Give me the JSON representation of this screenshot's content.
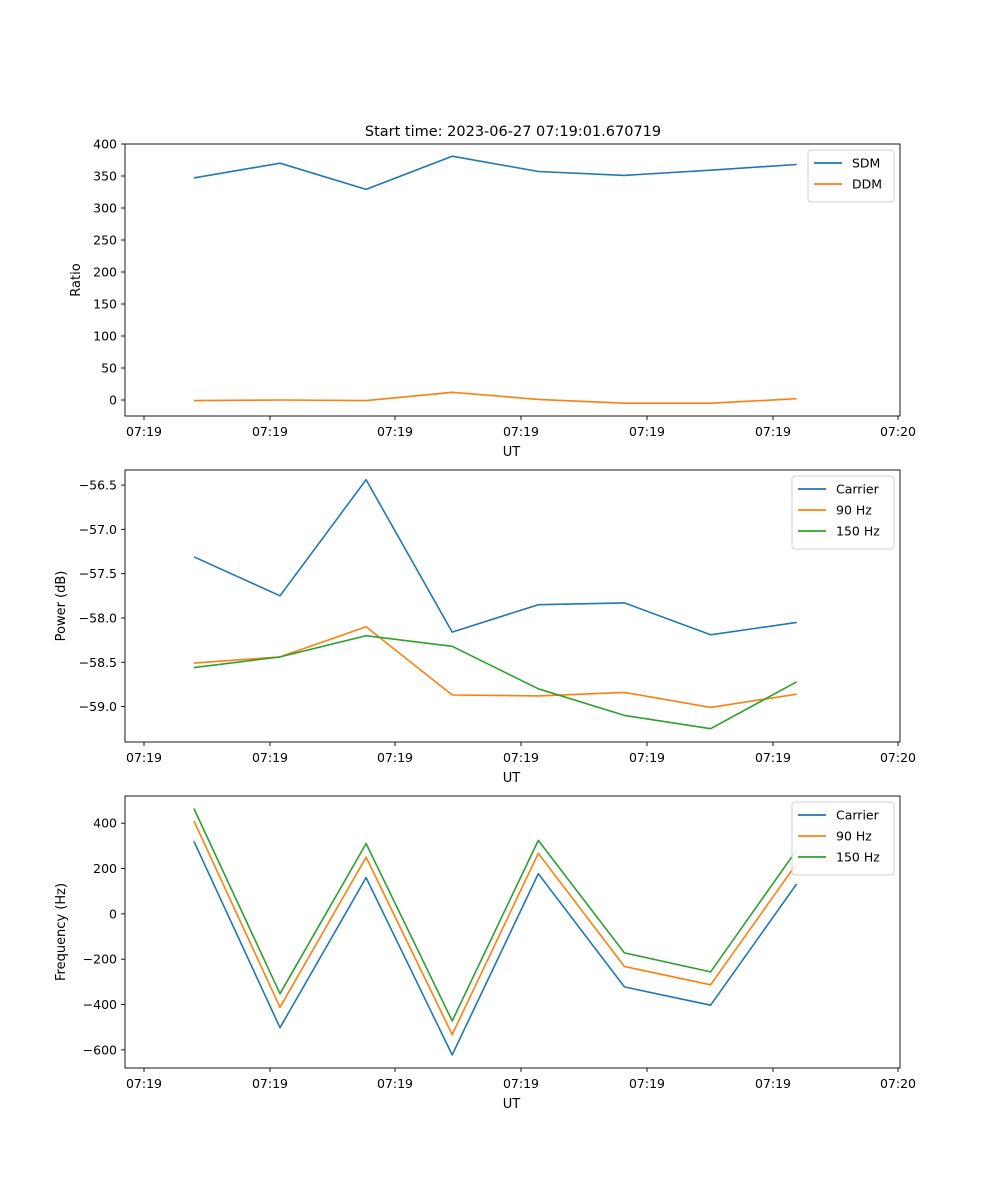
{
  "figure": {
    "title": "Start time: 2023-06-27 07:19:01.670719"
  },
  "colors": {
    "blue": "#1f77b4",
    "orange": "#ff7f0e",
    "green": "#2ca02c"
  },
  "chart_data": [
    {
      "type": "line",
      "title": "Start time: 2023-06-27 07:19:01.670719",
      "xlabel": "UT",
      "ylabel": "Ratio",
      "x_tick_labels": [
        "07:19",
        "07:19",
        "07:19",
        "07:19",
        "07:19",
        "07:19",
        "07:20"
      ],
      "x": [
        1,
        2,
        3,
        4,
        5,
        6,
        7,
        8
      ],
      "xlim": [
        0.2,
        9.2
      ],
      "ylim": [
        -25,
        400
      ],
      "y_ticks": [
        0,
        50,
        100,
        150,
        200,
        250,
        300,
        350,
        400
      ],
      "legend_position": "top-right",
      "grid": false,
      "series": [
        {
          "name": "SDM",
          "color": "#1f77b4",
          "values": [
            347,
            370,
            329,
            381,
            357,
            351,
            359,
            368
          ]
        },
        {
          "name": "DDM",
          "color": "#ff7f0e",
          "values": [
            -1,
            0,
            -1,
            12,
            1,
            -5,
            -5,
            2
          ]
        }
      ]
    },
    {
      "type": "line",
      "title": "",
      "xlabel": "UT",
      "ylabel": "Power (dB)",
      "x_tick_labels": [
        "07:19",
        "07:19",
        "07:19",
        "07:19",
        "07:19",
        "07:19",
        "07:20"
      ],
      "x": [
        1,
        2,
        3,
        4,
        5,
        6,
        7,
        8
      ],
      "xlim": [
        0.2,
        9.2
      ],
      "ylim": [
        -59.4,
        -56.33
      ],
      "y_ticks": [
        -59.0,
        -58.5,
        -58.0,
        -57.5,
        -57.0,
        -56.5
      ],
      "y_tick_labels": [
        "−59.0",
        "−58.5",
        "−58.0",
        "−57.5",
        "−57.0",
        "−56.5"
      ],
      "legend_position": "top-right",
      "grid": false,
      "series": [
        {
          "name": "Carrier",
          "color": "#1f77b4",
          "values": [
            -57.31,
            -57.75,
            -56.44,
            -58.16,
            -57.85,
            -57.83,
            -58.19,
            -58.05
          ]
        },
        {
          "name": "90 Hz",
          "color": "#ff7f0e",
          "values": [
            -58.51,
            -58.44,
            -58.1,
            -58.87,
            -58.88,
            -58.84,
            -59.01,
            -58.86
          ]
        },
        {
          "name": "150 Hz",
          "color": "#2ca02c",
          "values": [
            -58.56,
            -58.44,
            -58.2,
            -58.32,
            -58.8,
            -59.1,
            -59.25,
            -58.72
          ]
        }
      ]
    },
    {
      "type": "line",
      "title": "",
      "xlabel": "UT",
      "ylabel": "Frequency (Hz)",
      "x_tick_labels": [
        "07:19",
        "07:19",
        "07:19",
        "07:19",
        "07:19",
        "07:19",
        "07:20"
      ],
      "x": [
        1,
        2,
        3,
        4,
        5,
        6,
        7,
        8
      ],
      "xlim": [
        0.2,
        9.2
      ],
      "ylim": [
        -680,
        520
      ],
      "y_ticks": [
        -600,
        -400,
        -200,
        0,
        200,
        400
      ],
      "y_tick_labels": [
        "−600",
        "−400",
        "−200",
        "0",
        "200",
        "400"
      ],
      "legend_position": "top-right",
      "grid": false,
      "series": [
        {
          "name": "Carrier",
          "color": "#1f77b4",
          "values": [
            320,
            -502,
            160,
            -622,
            177,
            -322,
            -403,
            132
          ]
        },
        {
          "name": "90 Hz",
          "color": "#ff7f0e",
          "values": [
            410,
            -412,
            250,
            -532,
            267,
            -232,
            -313,
            222
          ]
        },
        {
          "name": "150 Hz",
          "color": "#2ca02c",
          "values": [
            465,
            -352,
            310,
            -472,
            324,
            -172,
            -256,
            282
          ]
        }
      ]
    }
  ]
}
